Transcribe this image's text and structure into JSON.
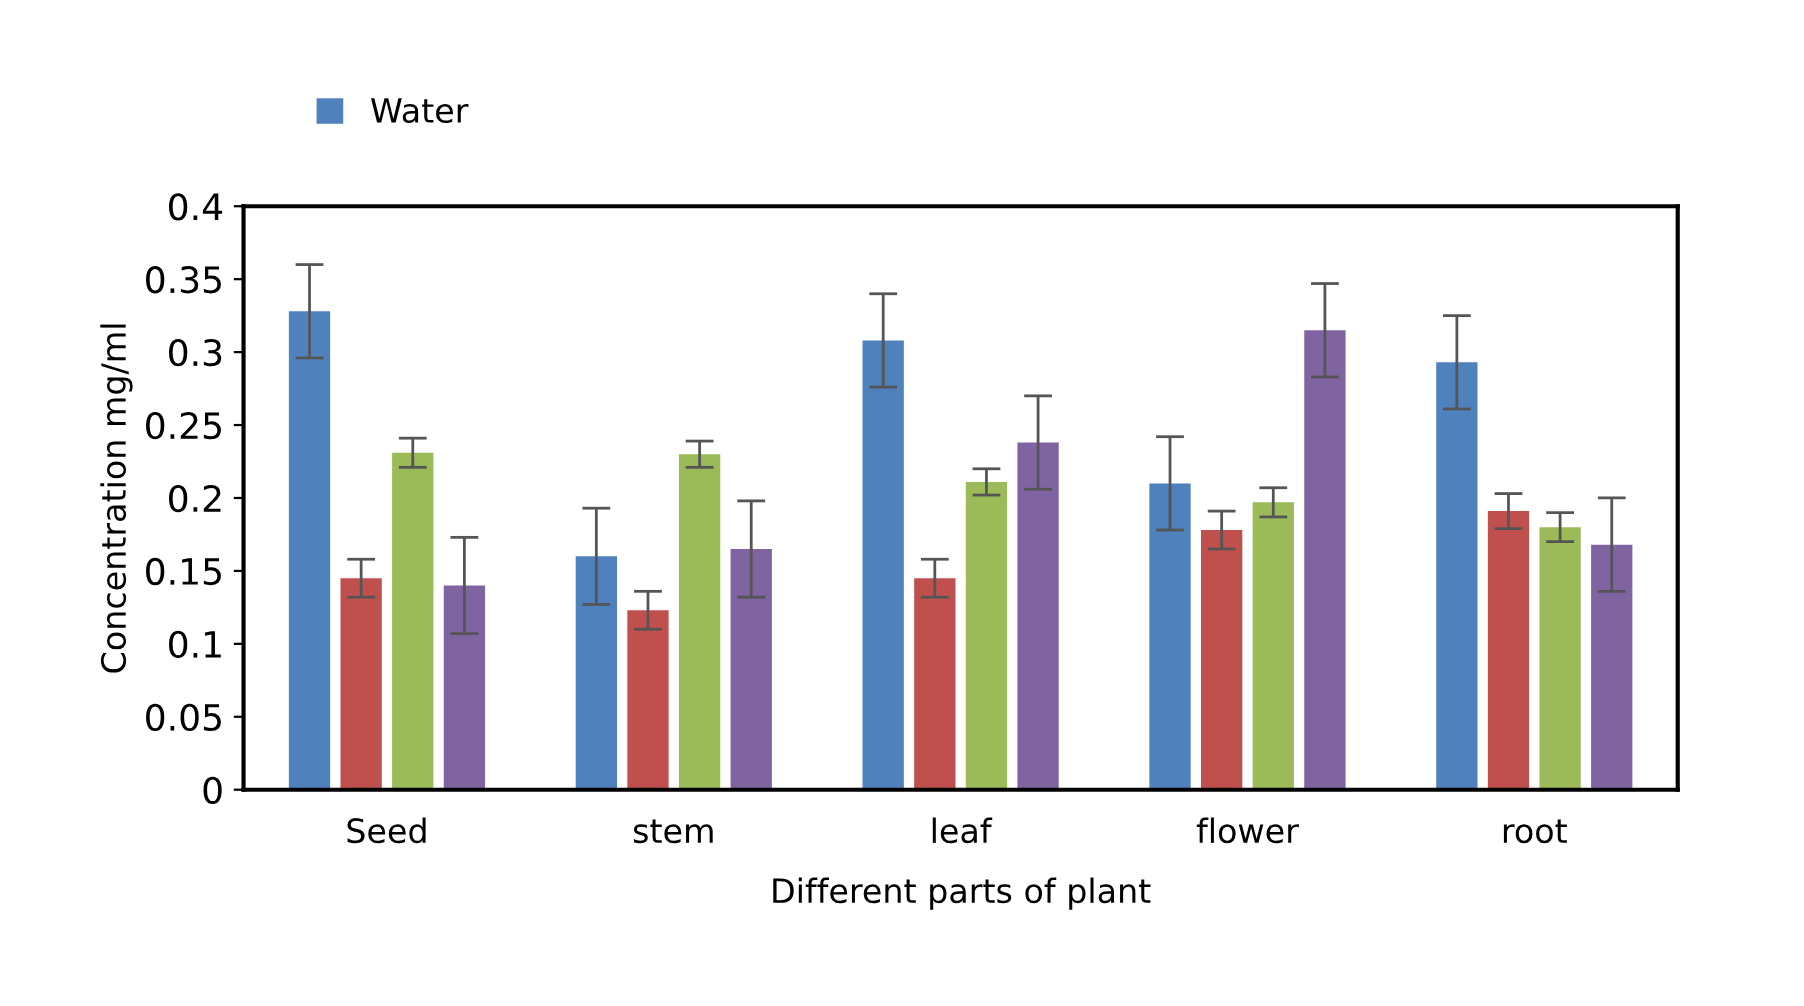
{
  "chart_data": {
    "type": "bar",
    "xlabel": "Different parts of plant",
    "ylabel": "Concentration mg/ml",
    "categories": [
      "Seed",
      "stem",
      "leaf",
      "flower",
      "root"
    ],
    "series": [
      {
        "name": "Water",
        "color": "#4f81bd",
        "values": [
          0.328,
          0.16,
          0.308,
          0.21,
          0.293
        ],
        "errors": [
          0.032,
          0.033,
          0.032,
          0.032,
          0.032
        ]
      },
      {
        "color": "#c0504d",
        "values": [
          0.145,
          0.123,
          0.145,
          0.178,
          0.191
        ],
        "errors": [
          0.013,
          0.013,
          0.013,
          0.013,
          0.012
        ]
      },
      {
        "color": "#9bbb59",
        "values": [
          0.231,
          0.23,
          0.211,
          0.197,
          0.18
        ],
        "errors": [
          0.01,
          0.009,
          0.009,
          0.01,
          0.01
        ]
      },
      {
        "color": "#8064a2",
        "values": [
          0.14,
          0.165,
          0.238,
          0.315,
          0.168
        ],
        "errors": [
          0.033,
          0.033,
          0.032,
          0.032,
          0.032
        ]
      }
    ],
    "ylim": [
      0,
      0.4
    ],
    "yticks": [
      0,
      0.05,
      0.1,
      0.15,
      0.2,
      0.25,
      0.3,
      0.35,
      0.4
    ],
    "grid": false,
    "legend": "top left"
  }
}
